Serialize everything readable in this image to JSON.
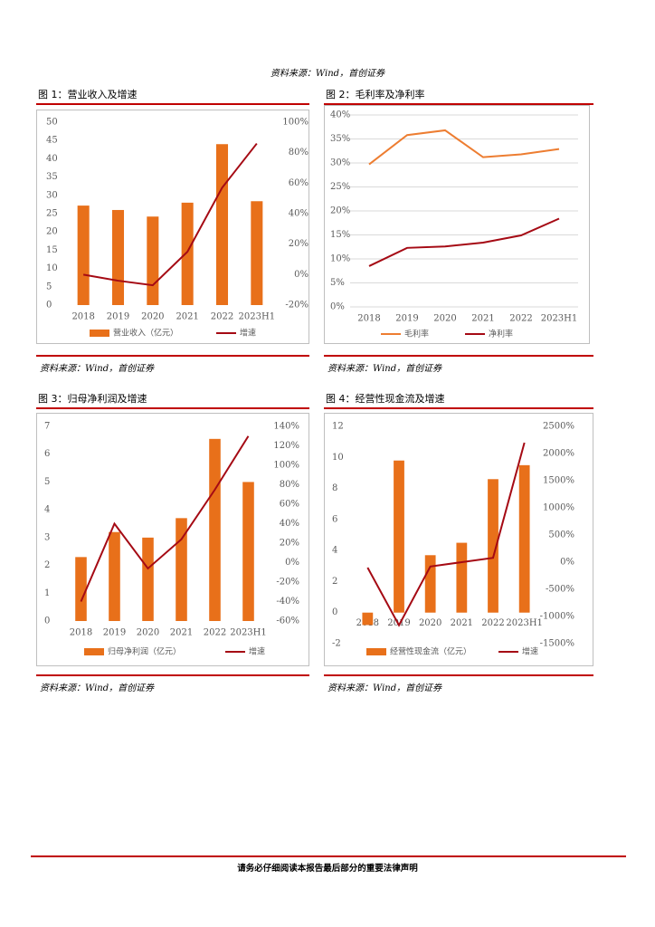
{
  "top_source": "资料来源：Wind，首创证券",
  "charts": [
    {
      "title": "图 1：营业收入及增速",
      "source": "资料来源：Wind，首创证券",
      "type": "bar+line",
      "categories": [
        "2018",
        "2019",
        "2020",
        "2021",
        "2022",
        "2023H1"
      ],
      "bar_series": {
        "name": "营业收入（亿元）",
        "values": [
          27.2,
          26,
          24.2,
          28,
          44,
          28.4
        ]
      },
      "line_series": {
        "name": "增速",
        "values": [
          0,
          -4,
          -7,
          15,
          57,
          86
        ]
      },
      "left_axis": {
        "ticks": [
          "0",
          "5",
          "10",
          "15",
          "20",
          "25",
          "30",
          "35",
          "40",
          "45",
          "50"
        ],
        "min": 0,
        "max": 50
      },
      "right_axis": {
        "ticks": [
          "-20%",
          "0%",
          "20%",
          "40%",
          "60%",
          "80%",
          "100%"
        ],
        "min": -20,
        "max": 100
      }
    },
    {
      "title": "图 2：毛利率及净利率",
      "source": "资料来源：Wind，首创证券",
      "type": "line",
      "categories": [
        "2018",
        "2019",
        "2020",
        "2021",
        "2022",
        "2023H1"
      ],
      "series": [
        {
          "name": "毛利率",
          "values": [
            29.7,
            35.8,
            36.8,
            31.2,
            31.8,
            32.9
          ]
        },
        {
          "name": "净利率",
          "values": [
            8.5,
            12.3,
            12.6,
            13.4,
            14.9,
            18.4
          ]
        }
      ],
      "left_axis": {
        "ticks": [
          "0%",
          "5%",
          "10%",
          "15%",
          "20%",
          "25%",
          "30%",
          "35%",
          "40%"
        ],
        "min": 0,
        "max": 40
      }
    },
    {
      "title": "图 3：归母净利润及增速",
      "source": "资料来源：Wind，首创证券",
      "type": "bar+line",
      "categories": [
        "2018",
        "2019",
        "2020",
        "2021",
        "2022",
        "2023H1"
      ],
      "bar_series": {
        "name": "归母净利润（亿元）",
        "values": [
          2.3,
          3.2,
          3.0,
          3.7,
          6.55,
          5.0
        ]
      },
      "line_series": {
        "name": "增速",
        "values": [
          -40,
          40,
          -6,
          24,
          75,
          130
        ]
      },
      "left_axis": {
        "ticks": [
          "0",
          "1",
          "2",
          "3",
          "4",
          "5",
          "6",
          "7"
        ],
        "min": 0,
        "max": 7
      },
      "right_axis": {
        "ticks": [
          "-60%",
          "-40%",
          "-20%",
          "0%",
          "20%",
          "40%",
          "60%",
          "80%",
          "100%",
          "120%",
          "140%"
        ],
        "min": -60,
        "max": 140
      }
    },
    {
      "title": "图 4：经营性现金流及增速",
      "source": "资料来源：Wind，首创证券",
      "type": "bar+line",
      "categories": [
        "2018",
        "2019",
        "2020",
        "2021",
        "2022",
        "2023H1"
      ],
      "bar_series": {
        "name": "经营性现金流（亿元）",
        "values": [
          -0.8,
          9.8,
          3.7,
          4.5,
          8.6,
          9.5
        ]
      },
      "line_series": {
        "name": "增速",
        "values": [
          -100,
          -1160,
          -80,
          0,
          80,
          2200
        ]
      },
      "left_axis": {
        "ticks": [
          "-2",
          "0",
          "2",
          "4",
          "6",
          "8",
          "10",
          "12"
        ],
        "min": -2,
        "max": 12
      },
      "right_axis": {
        "ticks": [
          "-1500%",
          "-1000%",
          "-500%",
          "0%",
          "500%",
          "1000%",
          "1500%",
          "2000%",
          "2500%"
        ],
        "min": -1500,
        "max": 2500
      }
    }
  ],
  "colors": {
    "bar": "#e8701a",
    "line_dark": "#a50a14",
    "line_orange": "#ed7d31",
    "rule": "#c00000"
  },
  "footer": "请务必仔细阅读本报告最后部分的重要法律声明"
}
